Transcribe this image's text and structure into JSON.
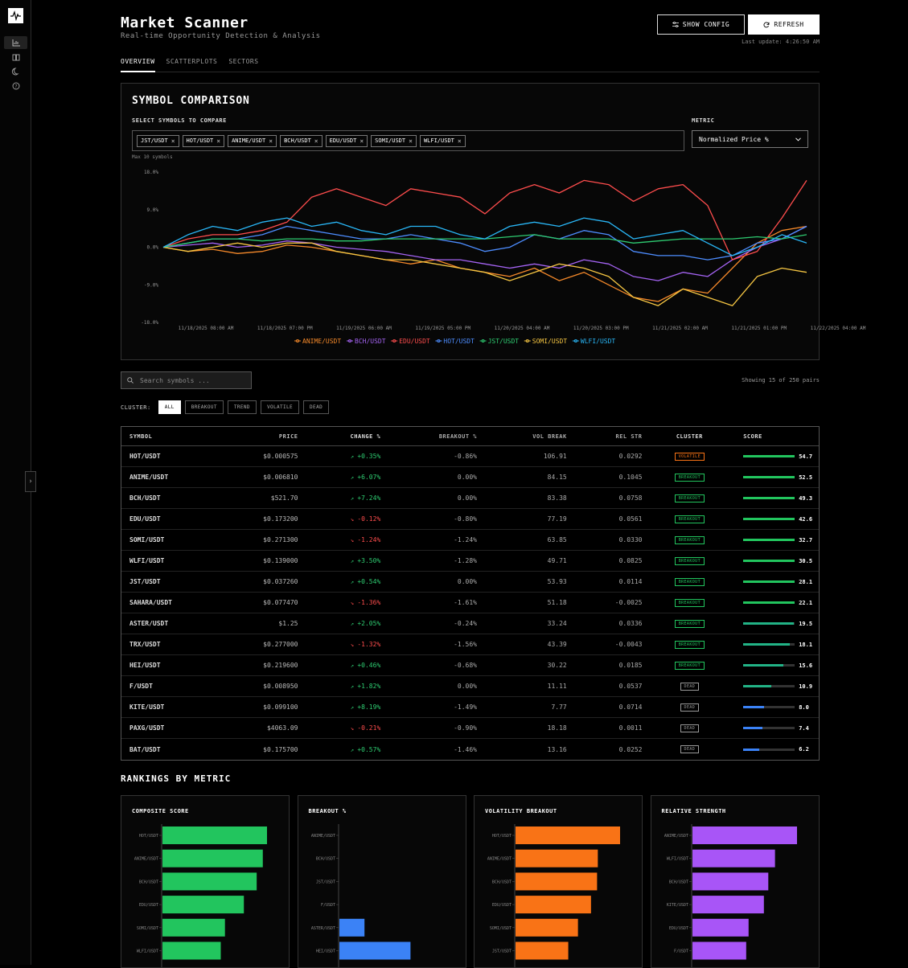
{
  "header": {
    "title": "Market Scanner",
    "subtitle": "Real-time Opportunity Detection & Analysis",
    "show_config_label": "SHOW CONFIG",
    "refresh_label": "REFRESH",
    "last_update": "Last update: 4:26:50 AM"
  },
  "tabs": [
    {
      "label": "OVERVIEW",
      "active": true
    },
    {
      "label": "SCATTERPLOTS",
      "active": false
    },
    {
      "label": "SECTORS",
      "active": false
    }
  ],
  "comparison": {
    "title": "SYMBOL COMPARISON",
    "select_label": "SELECT SYMBOLS TO COMPARE",
    "chips": [
      "JST/USDT",
      "HOT/USDT",
      "ANIME/USDT",
      "BCH/USDT",
      "EDU/USDT",
      "SOMI/USDT",
      "WLFI/USDT"
    ],
    "max_note": "Max 10 symbols",
    "metric_label": "METRIC",
    "metric_value": "Normalized Price %"
  },
  "chart_data": {
    "type": "line",
    "y_ticks": [
      "18.0%",
      "9.0%",
      "0.0%",
      "-9.0%",
      "-18.0%"
    ],
    "ylim": [
      -18,
      18
    ],
    "x_ticks": [
      "11/18/2025 08:00 AM",
      "11/18/2025 07:00 PM",
      "11/19/2025 06:00 AM",
      "11/19/2025 05:00 PM",
      "11/20/2025 04:00 AM",
      "11/20/2025 03:00 PM",
      "11/21/2025 02:00 AM",
      "11/21/2025 01:00 PM",
      "11/22/2025 04:00 AM"
    ],
    "series": [
      {
        "name": "ANIME/USDT",
        "color": "#f5892a",
        "values": [
          0,
          -1,
          -0.5,
          -1.5,
          -1,
          0.5,
          0,
          -1,
          -2,
          -3,
          -4,
          -3,
          -5,
          -6,
          -7,
          -5,
          -8,
          -6,
          -9,
          -12,
          -13,
          -10,
          -11,
          -5,
          1,
          4,
          5
        ]
      },
      {
        "name": "BCH/USDT",
        "color": "#a463f2",
        "values": [
          0,
          0.5,
          1,
          0,
          0.5,
          1.5,
          1,
          0,
          -0.5,
          -1,
          -2,
          -3,
          -3,
          -4,
          -5,
          -4,
          -5,
          -3,
          -4,
          -7,
          -8,
          -6,
          -7,
          -3,
          0,
          2,
          5
        ]
      },
      {
        "name": "EDU/USDT",
        "color": "#ff4d4d",
        "values": [
          0,
          2,
          3,
          3,
          4,
          6,
          12,
          14,
          12,
          10,
          14,
          13,
          12,
          8,
          13,
          15,
          13,
          16,
          15,
          11,
          14,
          15,
          10,
          -3,
          -1,
          7,
          16
        ]
      },
      {
        "name": "HOT/USDT",
        "color": "#4d8dff",
        "values": [
          0,
          1,
          2,
          2,
          3,
          5,
          4,
          3,
          2,
          2,
          3,
          2,
          1,
          -1,
          0,
          3,
          2,
          4,
          3,
          -1,
          -2,
          -2,
          -3,
          -2,
          1,
          2,
          5
        ]
      },
      {
        "name": "JST/USDT",
        "color": "#2ecc71",
        "values": [
          0,
          1,
          2,
          2,
          1.5,
          2,
          2,
          1.5,
          1.5,
          2,
          2,
          2,
          2,
          2,
          2.5,
          3,
          2,
          2,
          2,
          1,
          1.5,
          2,
          2,
          2,
          2.5,
          2,
          3
        ]
      },
      {
        "name": "SOMI/USDT",
        "color": "#f5c542",
        "values": [
          0,
          -1,
          0,
          1,
          0,
          1,
          1,
          -1,
          -2,
          -3,
          -3,
          -4,
          -5,
          -6,
          -8,
          -6,
          -4,
          -5,
          -7,
          -12,
          -14,
          -10,
          -12,
          -14,
          -7,
          -5,
          -6
        ]
      },
      {
        "name": "WLFI/USDT",
        "color": "#29b6f6",
        "values": [
          0,
          3,
          5,
          4,
          6,
          7,
          5,
          6,
          4,
          3,
          5,
          5,
          3,
          2,
          5,
          6,
          5,
          7,
          6,
          2,
          3,
          4,
          1,
          -2,
          0,
          3,
          1
        ]
      }
    ]
  },
  "filters": {
    "search_placeholder": "Search symbols ...",
    "showing": "Showing 15 of 250 pairs",
    "cluster_label": "CLUSTER:",
    "cluster_options": [
      "ALL",
      "BREAKOUT",
      "TREND",
      "VOLATILE",
      "DEAD"
    ]
  },
  "table": {
    "headers": [
      "SYMBOL",
      "PRICE",
      "CHANGE %",
      "BREAKOUT %",
      "VOL BREAK",
      "REL STR",
      "CLUSTER",
      "SCORE"
    ],
    "rows": [
      {
        "symbol": "HOT/USDT",
        "price": "$0.000575",
        "change": "+0.35%",
        "up": true,
        "breakout": "-0.86%",
        "vol": "106.91",
        "rel": "0.0292",
        "cluster": "VOLATILE",
        "score": "54.7",
        "score_num": 54.7
      },
      {
        "symbol": "ANIME/USDT",
        "price": "$0.006810",
        "change": "+6.07%",
        "up": true,
        "breakout": "0.00%",
        "vol": "84.15",
        "rel": "0.1045",
        "cluster": "BREAKOUT",
        "score": "52.5",
        "score_num": 52.5
      },
      {
        "symbol": "BCH/USDT",
        "price": "$521.70",
        "change": "+7.24%",
        "up": true,
        "breakout": "0.00%",
        "vol": "83.38",
        "rel": "0.0758",
        "cluster": "BREAKOUT",
        "score": "49.3",
        "score_num": 49.3
      },
      {
        "symbol": "EDU/USDT",
        "price": "$0.173200",
        "change": "-0.12%",
        "up": false,
        "breakout": "-0.80%",
        "vol": "77.19",
        "rel": "0.0561",
        "cluster": "BREAKOUT",
        "score": "42.6",
        "score_num": 42.6
      },
      {
        "symbol": "SOMI/USDT",
        "price": "$0.271300",
        "change": "-1.24%",
        "up": false,
        "breakout": "-1.24%",
        "vol": "63.85",
        "rel": "0.0330",
        "cluster": "BREAKOUT",
        "score": "32.7",
        "score_num": 32.7
      },
      {
        "symbol": "WLFI/USDT",
        "price": "$0.139000",
        "change": "+3.50%",
        "up": true,
        "breakout": "-1.28%",
        "vol": "49.71",
        "rel": "0.0825",
        "cluster": "BREAKOUT",
        "score": "30.5",
        "score_num": 30.5
      },
      {
        "symbol": "JST/USDT",
        "price": "$0.037260",
        "change": "+0.54%",
        "up": true,
        "breakout": "0.00%",
        "vol": "53.93",
        "rel": "0.0114",
        "cluster": "BREAKOUT",
        "score": "28.1",
        "score_num": 28.1
      },
      {
        "symbol": "SAHARA/USDT",
        "price": "$0.077470",
        "change": "-1.36%",
        "up": false,
        "breakout": "-1.61%",
        "vol": "51.18",
        "rel": "-0.0025",
        "cluster": "BREAKOUT",
        "score": "22.1",
        "score_num": 22.1
      },
      {
        "symbol": "ASTER/USDT",
        "price": "$1.25",
        "change": "+2.05%",
        "up": true,
        "breakout": "-0.24%",
        "vol": "33.24",
        "rel": "0.0336",
        "cluster": "BREAKOUT",
        "score": "19.5",
        "score_num": 19.5
      },
      {
        "symbol": "TRX/USDT",
        "price": "$0.277000",
        "change": "-1.32%",
        "up": false,
        "breakout": "-1.56%",
        "vol": "43.39",
        "rel": "-0.0043",
        "cluster": "BREAKOUT",
        "score": "18.1",
        "score_num": 18.1
      },
      {
        "symbol": "HEI/USDT",
        "price": "$0.219600",
        "change": "+0.46%",
        "up": true,
        "breakout": "-0.68%",
        "vol": "30.22",
        "rel": "0.0185",
        "cluster": "BREAKOUT",
        "score": "15.6",
        "score_num": 15.6
      },
      {
        "symbol": "F/USDT",
        "price": "$0.008950",
        "change": "+1.82%",
        "up": true,
        "breakout": "0.00%",
        "vol": "11.11",
        "rel": "0.0537",
        "cluster": "DEAD",
        "score": "10.9",
        "score_num": 10.9
      },
      {
        "symbol": "KITE/USDT",
        "price": "$0.099100",
        "change": "+8.19%",
        "up": true,
        "breakout": "-1.49%",
        "vol": "7.77",
        "rel": "0.0714",
        "cluster": "DEAD",
        "score": "8.0",
        "score_num": 8.0
      },
      {
        "symbol": "PAXG/USDT",
        "price": "$4063.09",
        "change": "-0.21%",
        "up": false,
        "breakout": "-0.90%",
        "vol": "18.18",
        "rel": "0.0011",
        "cluster": "DEAD",
        "score": "7.4",
        "score_num": 7.4
      },
      {
        "symbol": "BAT/USDT",
        "price": "$0.175700",
        "change": "+0.57%",
        "up": true,
        "breakout": "-1.46%",
        "vol": "13.16",
        "rel": "0.0252",
        "cluster": "DEAD",
        "score": "6.2",
        "score_num": 6.2
      }
    ]
  },
  "rankings": {
    "title": "RANKINGS BY METRIC",
    "cards": [
      {
        "title": "COMPOSITE SCORE",
        "color": "#22c55e",
        "max": 54.7,
        "items": [
          {
            "label": "HOT/USDT",
            "value": 54.7
          },
          {
            "label": "ANIME/USDT",
            "value": 52.5
          },
          {
            "label": "BCH/USDT",
            "value": 49.3
          },
          {
            "label": "EDU/USDT",
            "value": 42.6
          },
          {
            "label": "SOMI/USDT",
            "value": 32.7
          },
          {
            "label": "WLFI/USDT",
            "value": 30.5
          }
        ]
      },
      {
        "title": "BREAKOUT %",
        "color": "#3b82f6",
        "max": 1.0,
        "items": [
          {
            "label": "ANIME/USDT",
            "value": 0
          },
          {
            "label": "BCH/USDT",
            "value": 0
          },
          {
            "label": "JST/USDT",
            "value": 0
          },
          {
            "label": "F/USDT",
            "value": 0
          },
          {
            "label": "ASTER/USDT",
            "value": 0.24
          },
          {
            "label": "HEI/USDT",
            "value": 0.68
          }
        ]
      },
      {
        "title": "VOLATILITY BREAKOUT",
        "color": "#f97316",
        "max": 106.91,
        "items": [
          {
            "label": "HOT/USDT",
            "value": 106.91
          },
          {
            "label": "ANIME/USDT",
            "value": 84.15
          },
          {
            "label": "BCH/USDT",
            "value": 83.38
          },
          {
            "label": "EDU/USDT",
            "value": 77.19
          },
          {
            "label": "SOMI/USDT",
            "value": 63.85
          },
          {
            "label": "JST/USDT",
            "value": 53.93
          }
        ]
      },
      {
        "title": "RELATIVE STRENGTH",
        "color": "#a855f7",
        "max": 0.1045,
        "items": [
          {
            "label": "ANIME/USDT",
            "value": 0.1045
          },
          {
            "label": "WLFI/USDT",
            "value": 0.0825
          },
          {
            "label": "BCH/USDT",
            "value": 0.0758
          },
          {
            "label": "KITE/USDT",
            "value": 0.0714
          },
          {
            "label": "EDU/USDT",
            "value": 0.0561
          },
          {
            "label": "F/USDT",
            "value": 0.0537
          }
        ]
      }
    ]
  }
}
